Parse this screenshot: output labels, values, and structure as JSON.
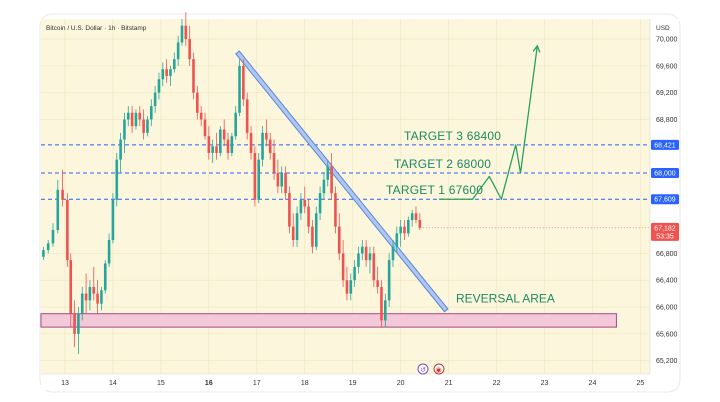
{
  "chart_data": {
    "type": "candlestick",
    "title": "Bitcoin / U.S. Dollar · 1h · Bitstamp",
    "currency_label": "USD",
    "ylim": [
      65000,
      70300
    ],
    "xlim": [
      12.5,
      25.2
    ],
    "price_ticks": [
      {
        "value": 65200,
        "label": "65,200"
      },
      {
        "value": 65600,
        "label": "65,600"
      },
      {
        "value": 66000,
        "label": "66,000"
      },
      {
        "value": 66400,
        "label": "66,400"
      },
      {
        "value": 66800,
        "label": "66,800"
      },
      {
        "value": 68800,
        "label": "68,800"
      },
      {
        "value": 69200,
        "label": "69,200"
      },
      {
        "value": 69600,
        "label": "69,600"
      },
      {
        "value": 70000,
        "label": "70,000"
      }
    ],
    "date_ticks": [
      {
        "value": 13,
        "label": "13",
        "bold": false
      },
      {
        "value": 14,
        "label": "14",
        "bold": false
      },
      {
        "value": 15,
        "label": "15",
        "bold": false
      },
      {
        "value": 16,
        "label": "16",
        "bold": true
      },
      {
        "value": 17,
        "label": "17",
        "bold": false
      },
      {
        "value": 18,
        "label": "18",
        "bold": false
      },
      {
        "value": 19,
        "label": "19",
        "bold": false
      },
      {
        "value": 20,
        "label": "20",
        "bold": false
      },
      {
        "value": 21,
        "label": "21",
        "bold": false
      },
      {
        "value": 22,
        "label": "22",
        "bold": false
      },
      {
        "value": 23,
        "label": "23",
        "bold": false
      },
      {
        "value": 24,
        "label": "24",
        "bold": false
      },
      {
        "value": 25,
        "label": "25",
        "bold": false
      }
    ],
    "levels": [
      {
        "label": "TARGET 3 68400",
        "price": 68421,
        "badge": "68,421"
      },
      {
        "label": "TARGET 2 68000",
        "price": 68000,
        "badge": "68,000"
      },
      {
        "label": "TARGET 1 67600",
        "price": 67609,
        "badge": "67,609"
      }
    ],
    "current_price": {
      "value": 67182,
      "label": "67,182",
      "countdown": "53:35"
    },
    "reversal_area": {
      "label": "REVERSAL AREA",
      "from": 65700,
      "to": 65900,
      "x_start": 12.5,
      "x_end": 24.5
    },
    "trendline": {
      "x1": 16.6,
      "y1": 69800,
      "x2": 20.95,
      "y2": 65950
    },
    "projection": [
      {
        "x": 20.8,
        "y": 67609
      },
      {
        "x": 21.5,
        "y": 67609
      },
      {
        "x": 21.85,
        "y": 67950
      },
      {
        "x": 22.1,
        "y": 67609
      },
      {
        "x": 22.4,
        "y": 68421
      },
      {
        "x": 22.5,
        "y": 68000
      },
      {
        "x": 22.85,
        "y": 69900
      }
    ],
    "colors": {
      "up": "#26a69a",
      "down": "#ef5350",
      "target_line": "#2962ff",
      "annotation": "#1f8a5f",
      "trendline": "#5b86d9",
      "trendline_fill": "#aec6f0",
      "reversal_fill": "#f3c8d9",
      "reversal_border": "#a54a86",
      "background": "#fbf6dc"
    },
    "ohlc": [
      [
        12.55,
        66750,
        66900,
        66700,
        66850
      ],
      [
        12.65,
        66850,
        67000,
        66800,
        66950
      ],
      [
        12.75,
        66950,
        67250,
        66900,
        67150
      ],
      [
        12.85,
        67150,
        67900,
        67100,
        67750
      ],
      [
        12.95,
        67750,
        68050,
        67500,
        67600
      ],
      [
        13.05,
        67600,
        67700,
        66600,
        66700
      ],
      [
        13.12,
        66700,
        66800,
        65700,
        65900
      ],
      [
        13.2,
        65900,
        66100,
        65400,
        65600
      ],
      [
        13.28,
        65600,
        66000,
        65300,
        65900
      ],
      [
        13.36,
        65900,
        66300,
        65800,
        66200
      ],
      [
        13.44,
        66200,
        66500,
        65900,
        66100
      ],
      [
        13.52,
        66100,
        66400,
        65950,
        66300
      ],
      [
        13.6,
        66300,
        66600,
        66100,
        66200
      ],
      [
        13.68,
        66200,
        66400,
        65900,
        66050
      ],
      [
        13.76,
        66050,
        66300,
        65950,
        66250
      ],
      [
        13.84,
        66250,
        66700,
        66200,
        66650
      ],
      [
        13.92,
        66650,
        67100,
        66600,
        67000
      ],
      [
        14.0,
        67000,
        67700,
        66950,
        67600
      ],
      [
        14.08,
        67600,
        68300,
        67500,
        68200
      ],
      [
        14.16,
        68200,
        68600,
        68000,
        68500
      ],
      [
        14.24,
        68500,
        68900,
        68300,
        68800
      ],
      [
        14.32,
        68800,
        69000,
        68700,
        68900
      ],
      [
        14.4,
        68900,
        69000,
        68600,
        68700
      ],
      [
        14.48,
        68700,
        68950,
        68650,
        68900
      ],
      [
        14.56,
        68900,
        69000,
        68700,
        68800
      ],
      [
        14.64,
        68800,
        68950,
        68500,
        68600
      ],
      [
        14.72,
        68600,
        68850,
        68550,
        68800
      ],
      [
        14.8,
        68800,
        69100,
        68700,
        69000
      ],
      [
        14.88,
        69000,
        69300,
        68900,
        69200
      ],
      [
        14.96,
        69200,
        69500,
        69100,
        69400
      ],
      [
        15.04,
        69400,
        69650,
        69300,
        69550
      ],
      [
        15.12,
        69550,
        69700,
        69350,
        69450
      ],
      [
        15.2,
        69450,
        69600,
        69300,
        69550
      ],
      [
        15.28,
        69550,
        69800,
        69500,
        69700
      ],
      [
        15.36,
        69700,
        70050,
        69600,
        69950
      ],
      [
        15.44,
        69950,
        70300,
        69900,
        70200
      ],
      [
        15.52,
        70200,
        70400,
        69900,
        70000
      ],
      [
        15.6,
        70000,
        70200,
        69600,
        69700
      ],
      [
        15.68,
        69700,
        69800,
        69100,
        69200
      ],
      [
        15.76,
        69200,
        69300,
        68800,
        68900
      ],
      [
        15.84,
        68900,
        69000,
        68700,
        68800
      ],
      [
        15.92,
        68800,
        68900,
        68500,
        68550
      ],
      [
        16.0,
        68550,
        68700,
        68200,
        68300
      ],
      [
        16.08,
        68300,
        68500,
        68150,
        68400
      ],
      [
        16.16,
        68400,
        68600,
        68200,
        68300
      ],
      [
        16.24,
        68300,
        68700,
        68250,
        68650
      ],
      [
        16.32,
        68650,
        68800,
        68400,
        68500
      ],
      [
        16.4,
        68500,
        68600,
        68200,
        68300
      ],
      [
        16.48,
        68300,
        68600,
        68250,
        68550
      ],
      [
        16.56,
        68550,
        69000,
        68500,
        68900
      ],
      [
        16.64,
        68900,
        69700,
        68850,
        69600
      ],
      [
        16.72,
        69600,
        69700,
        69000,
        69100
      ],
      [
        16.8,
        69100,
        69200,
        68500,
        68600
      ],
      [
        16.88,
        68600,
        68700,
        68200,
        68300
      ],
      [
        16.96,
        68300,
        68400,
        67500,
        67600
      ],
      [
        17.04,
        67600,
        68300,
        67550,
        68200
      ],
      [
        17.12,
        68200,
        68700,
        68100,
        68600
      ],
      [
        17.2,
        68600,
        68800,
        68400,
        68500
      ],
      [
        17.28,
        68500,
        68600,
        68200,
        68300
      ],
      [
        17.36,
        68300,
        68500,
        67900,
        68000
      ],
      [
        17.44,
        68000,
        68200,
        67700,
        67800
      ],
      [
        17.52,
        67800,
        68100,
        67700,
        68000
      ],
      [
        17.6,
        68000,
        68100,
        67600,
        67700
      ],
      [
        17.68,
        67700,
        67800,
        67100,
        67200
      ],
      [
        17.76,
        67200,
        67400,
        66900,
        67000
      ],
      [
        17.84,
        67000,
        67500,
        66900,
        67400
      ],
      [
        17.92,
        67400,
        67700,
        67300,
        67600
      ],
      [
        18.0,
        67600,
        67800,
        67400,
        67500
      ],
      [
        18.08,
        67500,
        67600,
        67100,
        67200
      ],
      [
        18.16,
        67200,
        67300,
        66800,
        66900
      ],
      [
        18.24,
        66900,
        67500,
        66850,
        67400
      ],
      [
        18.32,
        67400,
        67800,
        67300,
        67700
      ],
      [
        18.4,
        67700,
        68000,
        67600,
        67900
      ],
      [
        18.48,
        67900,
        68200,
        67800,
        68100
      ],
      [
        18.56,
        68100,
        68300,
        67600,
        67700
      ],
      [
        18.64,
        67700,
        67800,
        67100,
        67200
      ],
      [
        18.72,
        67200,
        67400,
        66700,
        66800
      ],
      [
        18.8,
        66800,
        67000,
        66300,
        66400
      ],
      [
        18.88,
        66400,
        66600,
        66100,
        66200
      ],
      [
        18.96,
        66200,
        66500,
        66100,
        66400
      ],
      [
        19.04,
        66400,
        66700,
        66300,
        66600
      ],
      [
        19.12,
        66600,
        66900,
        66500,
        66800
      ],
      [
        19.2,
        66800,
        67000,
        66700,
        66900
      ],
      [
        19.28,
        66900,
        67000,
        66600,
        66700
      ],
      [
        19.36,
        66700,
        66900,
        66500,
        66800
      ],
      [
        19.44,
        66800,
        66900,
        66300,
        66400
      ],
      [
        19.52,
        66400,
        66600,
        66200,
        66300
      ],
      [
        19.6,
        66300,
        66400,
        65700,
        65800
      ],
      [
        19.68,
        65800,
        66200,
        65700,
        66100
      ],
      [
        19.76,
        66100,
        66800,
        66000,
        66700
      ],
      [
        19.84,
        66700,
        67000,
        66600,
        66900
      ],
      [
        19.92,
        66900,
        67200,
        66800,
        67100
      ],
      [
        20.0,
        67100,
        67300,
        66900,
        67200
      ],
      [
        20.08,
        67200,
        67300,
        67000,
        67100
      ],
      [
        20.16,
        67100,
        67350,
        67050,
        67300
      ],
      [
        20.24,
        67300,
        67450,
        67200,
        67400
      ],
      [
        20.32,
        67400,
        67500,
        67250,
        67300
      ],
      [
        20.4,
        67300,
        67400,
        67150,
        67182
      ]
    ]
  },
  "page": {
    "watermark_left": "↺",
    "watermark_right": "◉"
  }
}
